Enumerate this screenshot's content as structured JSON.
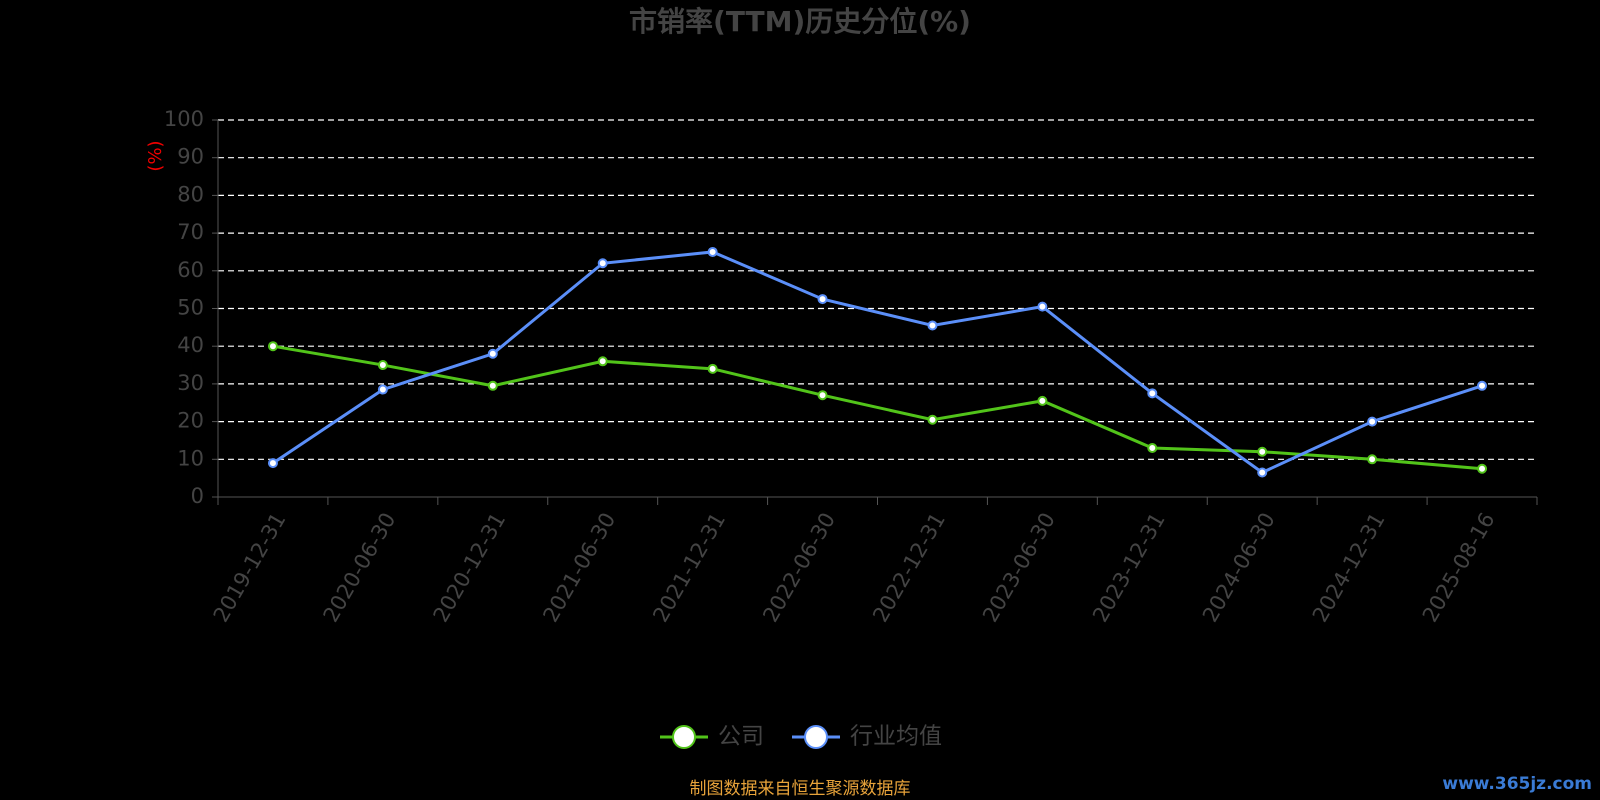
{
  "chart_data": {
    "type": "line",
    "title": "市销率(TTM)历史分位(%)",
    "y_label": "(%)",
    "categories": [
      "2019-12-31",
      "2020-06-30",
      "2020-12-31",
      "2021-06-30",
      "2021-12-31",
      "2022-06-30",
      "2022-12-31",
      "2023-06-30",
      "2023-12-31",
      "2024-06-30",
      "2024-12-31",
      "2025-08-16"
    ],
    "series": [
      {
        "name": "公司",
        "color": "#52c41a",
        "values": [
          40,
          35,
          29.5,
          36,
          34,
          27,
          20.5,
          25.5,
          13,
          12,
          10,
          7.5
        ]
      },
      {
        "name": "行业均值",
        "color": "#5b8ff9",
        "values": [
          9,
          28.5,
          38,
          62,
          65,
          52.5,
          45.5,
          50.5,
          27.5,
          6.5,
          20,
          29.5
        ]
      }
    ],
    "ylim": [
      0,
      100
    ],
    "yticks": [
      0,
      10,
      20,
      30,
      40,
      50,
      60,
      70,
      80,
      90,
      100
    ],
    "grid": true,
    "legend": "bottom",
    "source": "制图数据来自恒生聚源数据库",
    "watermark": "www.365jz.com"
  }
}
